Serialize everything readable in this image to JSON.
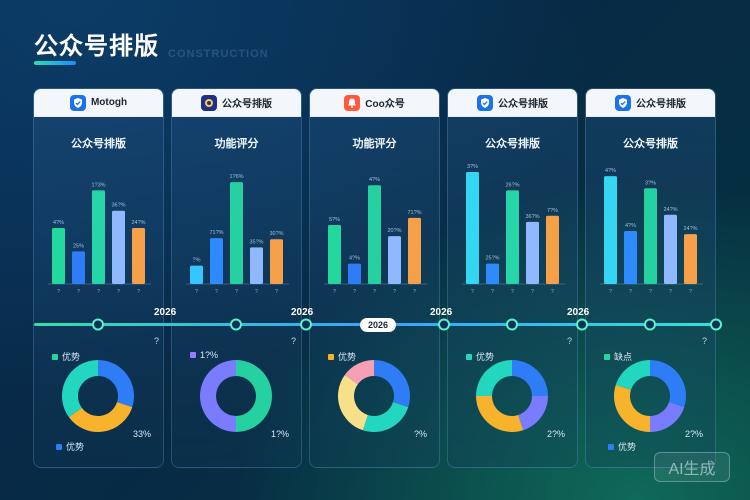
{
  "page": {
    "title": "公众号排版",
    "watermark": "CONSTRUCTION"
  },
  "cards": [
    {
      "brand": "Motogh",
      "brand_icon": "shield-icon",
      "brand_color": "#1a73e8",
      "subtitle": "公众号排版",
      "chart": {
        "values": [
          55,
          32,
          92,
          72,
          55
        ],
        "labels": [
          "4?%",
          "25%",
          "1?3%",
          "36?%",
          "24?%"
        ],
        "colors": [
          "#23d89c",
          "#2e7cf6",
          "#27d6a8",
          "#8fb8ff",
          "#f7a04a"
        ],
        "cats": [
          "?",
          "?",
          "?",
          "?",
          "?"
        ]
      },
      "year": "2026",
      "tl_label": "?",
      "donut": {
        "legend_top": "优势",
        "legend_top_color": "#23d89c",
        "legend_bottom": "优势",
        "pct": "33%",
        "slices": [
          30,
          35,
          35
        ],
        "colors": [
          "#2e7cf6",
          "#f7b32b",
          "#23d6c0"
        ]
      }
    },
    {
      "brand": "公众号排版",
      "brand_icon": "app-icon",
      "brand_color": "#1f2f8f",
      "subtitle": "功能评分",
      "chart": {
        "values": [
          18,
          45,
          100,
          36,
          44
        ],
        "labels": [
          "?%",
          "71?%",
          "1?6%",
          "35?%",
          "30?%"
        ],
        "colors": [
          "#35c6ff",
          "#2e8bff",
          "#25d1a0",
          "#8fb8ff",
          "#f7a04a"
        ],
        "cats": [
          "?",
          "?",
          "?",
          "?",
          "?"
        ]
      },
      "year": "2026",
      "tl_label": "?",
      "donut": {
        "legend_top": "1?%",
        "legend_top_color": "#9b7bff",
        "legend_bottom": "",
        "pct": "1?%",
        "slices": [
          50,
          50
        ],
        "colors": [
          "#25d1a0",
          "#7a7cff"
        ]
      }
    },
    {
      "brand": "Coo众号",
      "brand_icon": "bell-icon",
      "brand_color": "#ff5a3c",
      "subtitle": "功能评分",
      "chart": {
        "values": [
          58,
          20,
          97,
          47,
          65
        ],
        "labels": [
          "5?%",
          "4?%",
          "4?%",
          "20?%",
          "71?%"
        ],
        "colors": [
          "#23d89c",
          "#2e7cf6",
          "#25d1a0",
          "#8fb8ff",
          "#f7a04a"
        ],
        "cats": [
          "?",
          "?",
          "?",
          "?",
          "?"
        ]
      },
      "year": "2026",
      "tl_label": "",
      "donut": {
        "legend_top": "优势",
        "legend_top_color": "#f7b32b",
        "legend_bottom": "",
        "pct": "?%",
        "slices": [
          30,
          25,
          30,
          15
        ],
        "colors": [
          "#2e7cf6",
          "#23d6c0",
          "#f7e08a",
          "#f7a0b4"
        ]
      }
    },
    {
      "brand": "公众号排版",
      "brand_icon": "shield-icon",
      "brand_color": "#1a73e8",
      "subtitle": "公众号排版",
      "chart": {
        "values": [
          110,
          20,
          92,
          61,
          67
        ],
        "labels": [
          "3?%",
          "25?%",
          "26?%",
          "36?%",
          "7?%"
        ],
        "colors": [
          "#35d6f2",
          "#2e8bff",
          "#27d6a8",
          "#8fb8ff",
          "#f7a04a"
        ],
        "cats": [
          "?",
          "?",
          "?",
          "?",
          "?"
        ]
      },
      "year": "2026",
      "tl_label": "?",
      "donut": {
        "legend_top": "优势",
        "legend_top_color": "#23d6c0",
        "legend_bottom": "",
        "pct": "2?%",
        "slices": [
          25,
          20,
          30,
          25
        ],
        "colors": [
          "#2e7cf6",
          "#7a7cff",
          "#f7b32b",
          "#23d6c0"
        ]
      }
    },
    {
      "brand": "公众号排版",
      "brand_icon": "shield-icon",
      "brand_color": "#1a73e8",
      "subtitle": "公众号排版",
      "chart": {
        "values": [
          106,
          52,
          94,
          68,
          49
        ],
        "labels": [
          "4?%",
          "4?%",
          "3?%",
          "24?%",
          "24?%"
        ],
        "colors": [
          "#35d6f2",
          "#2e8bff",
          "#25d1a0",
          "#8fb8ff",
          "#f7a04a"
        ],
        "cats": [
          "?",
          "?",
          "?",
          "?",
          "?"
        ]
      },
      "year": "2026",
      "tl_label": "?",
      "donut": {
        "legend_top": "缺点",
        "legend_top_color": "#23d89c",
        "legend_bottom": "优势",
        "pct": "2?%",
        "slices": [
          30,
          20,
          30,
          20
        ],
        "colors": [
          "#2e7cf6",
          "#7a7cff",
          "#f7b32b",
          "#23d6c0"
        ]
      }
    }
  ],
  "badge": "AI生成"
}
